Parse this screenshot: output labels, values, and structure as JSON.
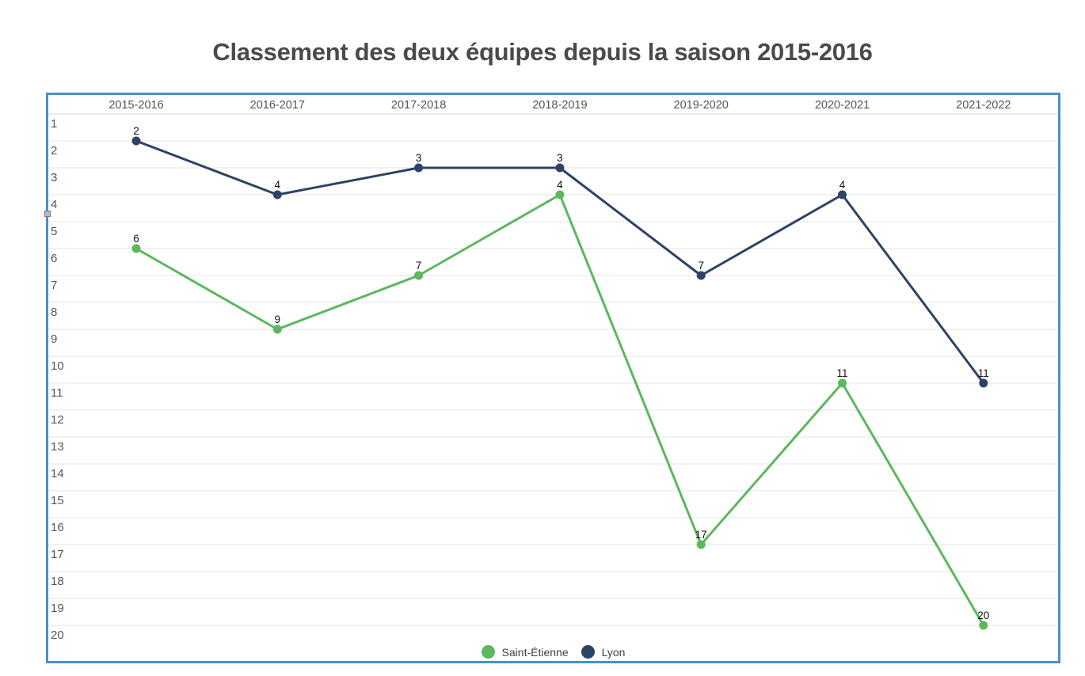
{
  "title": "Classement des deux équipes depuis la saison 2015-2016",
  "colors": {
    "frame_border": "#4d90c8",
    "gridline": "#e6e6e6",
    "axis_line": "#cfcfcf",
    "axis_text": "#555555",
    "point_label_text": "#111111",
    "title_text": "#4a4a4a"
  },
  "chart_data": {
    "type": "line",
    "title": "Classement des deux équipes depuis la saison 2015-2016",
    "categories": [
      "2015-2016",
      "2016-2017",
      "2017-2018",
      "2018-2019",
      "2019-2020",
      "2020-2021",
      "2021-2022"
    ],
    "series": [
      {
        "name": "Saint-Étienne",
        "color": "#5cb85c",
        "values": [
          6,
          9,
          7,
          4,
          17,
          11,
          20
        ]
      },
      {
        "name": "Lyon",
        "color": "#2d4365",
        "values": [
          2,
          4,
          3,
          3,
          7,
          4,
          11
        ]
      }
    ],
    "xlabel": "",
    "ylabel": "",
    "x_axis_position": "top",
    "y_axis": {
      "min": 1,
      "max": 20,
      "inverted": true,
      "ticks": [
        1,
        2,
        3,
        4,
        5,
        6,
        7,
        8,
        9,
        10,
        11,
        12,
        13,
        14,
        15,
        16,
        17,
        18,
        19,
        20
      ]
    },
    "grid": true,
    "point_labels": true,
    "legend_position": "bottom"
  }
}
